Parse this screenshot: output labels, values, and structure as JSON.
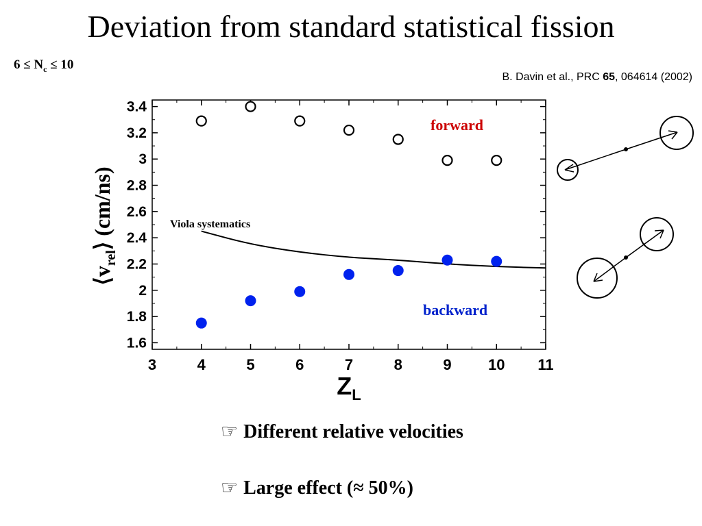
{
  "slide": {
    "title": "Deviation from standard statistical fission",
    "condition_prefix": "6 ≤  N",
    "condition_sub": "c",
    "condition_suffix": " ≤ 10",
    "citation_prefix": "B. Davin et al., PRC ",
    "citation_volume": "65",
    "citation_suffix": ", 064614 (2002)",
    "bullets": [
      {
        "icon": "pointing-hand-icon",
        "symbol": "☞",
        "text": "Different relative velocities"
      },
      {
        "icon": "pointing-hand-icon",
        "symbol": "☞",
        "text": "Large effect (≈ 50%)"
      }
    ]
  },
  "chart_data": {
    "type": "scatter",
    "xlabel": "Z",
    "xlabel_sub": "L",
    "ylabel": "⟨v_rel⟩ (cm/ns)",
    "xlim": [
      3,
      11
    ],
    "ylim": [
      1.55,
      3.45
    ],
    "x_ticks": [
      "3",
      "4",
      "5",
      "6",
      "7",
      "8",
      "9",
      "10",
      "11"
    ],
    "y_ticks": [
      "1.6",
      "1.8",
      "2",
      "2.2",
      "2.4",
      "2.6",
      "2.8",
      "3",
      "3.2",
      "3.4"
    ],
    "grid": false,
    "series": [
      {
        "name": "forward",
        "marker": "open-circle",
        "color": "#000000",
        "x": [
          4,
          5,
          6,
          7,
          8,
          9,
          10
        ],
        "y": [
          3.29,
          3.4,
          3.29,
          3.22,
          3.15,
          2.99,
          2.99
        ]
      },
      {
        "name": "backward",
        "marker": "filled-circle",
        "color": "#0022ee",
        "x": [
          4,
          5,
          6,
          7,
          8,
          9,
          10
        ],
        "y": [
          1.75,
          1.92,
          1.99,
          2.12,
          2.15,
          2.23,
          2.22
        ]
      },
      {
        "name": "Viola systematics",
        "marker": "line",
        "color": "#000000",
        "x": [
          4,
          5,
          6,
          7,
          8,
          9,
          10,
          11
        ],
        "y": [
          2.45,
          2.35,
          2.29,
          2.25,
          2.23,
          2.2,
          2.18,
          2.17
        ]
      }
    ],
    "annotations": [
      {
        "text": "forward",
        "color": "#cc0000"
      },
      {
        "text": "backward",
        "color": "#0022cc"
      },
      {
        "text": "Viola systematics",
        "color": "#000000"
      }
    ]
  },
  "diagrams": [
    {
      "name": "forward-emission-diagram"
    },
    {
      "name": "backward-emission-diagram"
    }
  ]
}
